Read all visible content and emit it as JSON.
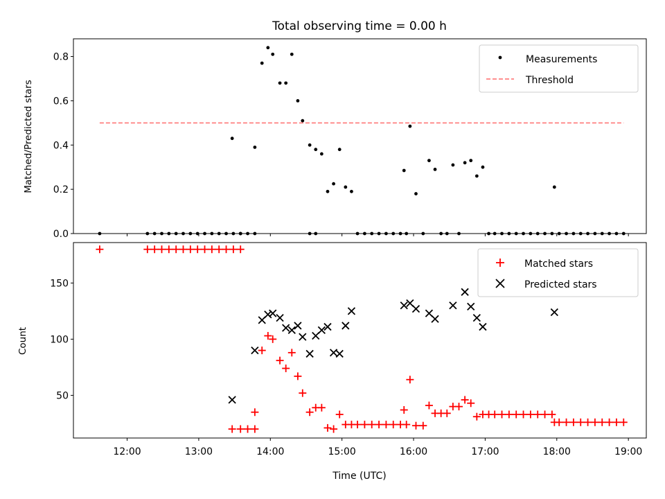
{
  "figure": {
    "title": "Total observing time = 0.00 h",
    "xlabel": "Time (UTC)"
  },
  "chart_data": [
    {
      "type": "scatter",
      "ylabel": "Matched/Predicted stars",
      "xlim": [
        "11:15",
        "19:15"
      ],
      "ylim": [
        0,
        0.88
      ],
      "yticks": [
        0.0,
        0.2,
        0.4,
        0.6,
        0.8
      ],
      "ytick_labels": [
        "0.0",
        "0.2",
        "0.4",
        "0.6",
        "0.8"
      ],
      "grid": false,
      "legend_position": "top-right",
      "series": [
        {
          "name": "Measurements",
          "marker": "dot",
          "color": "#000000",
          "points": [
            [
              "11:37",
              0
            ],
            [
              "12:17",
              0
            ],
            [
              "12:23",
              0
            ],
            [
              "12:29",
              0
            ],
            [
              "12:35",
              0
            ],
            [
              "12:41",
              0
            ],
            [
              "12:47",
              0
            ],
            [
              "12:53",
              0
            ],
            [
              "12:59",
              0
            ],
            [
              "13:05",
              0
            ],
            [
              "13:11",
              0
            ],
            [
              "13:17",
              0
            ],
            [
              "13:23",
              0
            ],
            [
              "13:29",
              0
            ],
            [
              "13:35",
              0
            ],
            [
              "13:28",
              0.43
            ],
            [
              "13:35",
              0
            ],
            [
              "13:41",
              0
            ],
            [
              "13:47",
              0
            ],
            [
              "13:47",
              0.39
            ],
            [
              "13:53",
              0.77
            ],
            [
              "13:58",
              0.84
            ],
            [
              "14:02",
              0.81
            ],
            [
              "14:08",
              0.68
            ],
            [
              "14:13",
              0.68
            ],
            [
              "14:18",
              0.81
            ],
            [
              "14:23",
              0.6
            ],
            [
              "14:27",
              0.51
            ],
            [
              "14:33",
              0
            ],
            [
              "14:38",
              0
            ],
            [
              "14:33",
              0.4
            ],
            [
              "14:38",
              0.38
            ],
            [
              "14:43",
              0.36
            ],
            [
              "14:48",
              0.19
            ],
            [
              "14:53",
              0.225
            ],
            [
              "14:58",
              0.38
            ],
            [
              "15:03",
              0.21
            ],
            [
              "15:08",
              0.19
            ],
            [
              "15:13",
              0
            ],
            [
              "15:19",
              0
            ],
            [
              "15:25",
              0
            ],
            [
              "15:31",
              0
            ],
            [
              "15:37",
              0
            ],
            [
              "15:43",
              0
            ],
            [
              "15:49",
              0
            ],
            [
              "15:54",
              0
            ],
            [
              "15:52",
              0.285
            ],
            [
              "15:57",
              0.485
            ],
            [
              "16:02",
              0.18
            ],
            [
              "16:08",
              0
            ],
            [
              "16:13",
              0.33
            ],
            [
              "16:18",
              0.29
            ],
            [
              "16:23",
              0
            ],
            [
              "16:28",
              0
            ],
            [
              "16:33",
              0.31
            ],
            [
              "16:38",
              0
            ],
            [
              "16:43",
              0.32
            ],
            [
              "16:48",
              0.33
            ],
            [
              "16:53",
              0.26
            ],
            [
              "16:58",
              0.3
            ],
            [
              "17:03",
              0
            ],
            [
              "17:08",
              0
            ],
            [
              "17:14",
              0
            ],
            [
              "17:20",
              0
            ],
            [
              "17:26",
              0
            ],
            [
              "17:32",
              0
            ],
            [
              "17:38",
              0
            ],
            [
              "17:44",
              0
            ],
            [
              "17:50",
              0
            ],
            [
              "17:56",
              0
            ],
            [
              "17:58",
              0.21
            ],
            [
              "18:02",
              0
            ],
            [
              "18:08",
              0
            ],
            [
              "18:14",
              0
            ],
            [
              "18:20",
              0
            ],
            [
              "18:26",
              0
            ],
            [
              "18:32",
              0
            ],
            [
              "18:38",
              0
            ],
            [
              "18:44",
              0
            ],
            [
              "18:50",
              0
            ],
            [
              "18:56",
              0
            ]
          ]
        },
        {
          "name": "Threshold",
          "type": "line",
          "style": "dashed",
          "color": "#ff7f7f",
          "points": [
            [
              "11:37",
              0.5
            ],
            [
              "18:56",
              0.5
            ]
          ]
        }
      ]
    },
    {
      "type": "scatter",
      "ylabel": "Count",
      "xlim": [
        "11:15",
        "19:15"
      ],
      "ylim": [
        12,
        186
      ],
      "yticks": [
        50,
        100,
        150
      ],
      "ytick_labels": [
        "50",
        "100",
        "150"
      ],
      "xticks": [
        "12:00",
        "13:00",
        "14:00",
        "15:00",
        "16:00",
        "17:00",
        "18:00",
        "19:00"
      ],
      "xtick_labels": [
        "12:00",
        "13:00",
        "14:00",
        "15:00",
        "16:00",
        "17:00",
        "18:00",
        "19:00"
      ],
      "grid": false,
      "legend_position": "top-right",
      "series": [
        {
          "name": "Matched stars",
          "marker": "plus",
          "color": "#ff0000",
          "points": [
            [
              "11:37",
              180
            ],
            [
              "12:17",
              180
            ],
            [
              "12:23",
              180
            ],
            [
              "12:29",
              180
            ],
            [
              "12:35",
              180
            ],
            [
              "12:41",
              180
            ],
            [
              "12:47",
              180
            ],
            [
              "12:53",
              180
            ],
            [
              "12:59",
              180
            ],
            [
              "13:05",
              180
            ],
            [
              "13:11",
              180
            ],
            [
              "13:17",
              180
            ],
            [
              "13:23",
              180
            ],
            [
              "13:29",
              180
            ],
            [
              "13:35",
              180
            ],
            [
              "13:28",
              20
            ],
            [
              "13:35",
              20
            ],
            [
              "13:41",
              20
            ],
            [
              "13:47",
              20
            ],
            [
              "13:47",
              35
            ],
            [
              "13:53",
              90
            ],
            [
              "13:58",
              103
            ],
            [
              "14:02",
              100
            ],
            [
              "14:08",
              81
            ],
            [
              "14:13",
              74
            ],
            [
              "14:18",
              88
            ],
            [
              "14:23",
              67
            ],
            [
              "14:27",
              52
            ],
            [
              "14:33",
              35
            ],
            [
              "14:38",
              39
            ],
            [
              "14:43",
              39
            ],
            [
              "14:48",
              21
            ],
            [
              "14:53",
              20
            ],
            [
              "14:58",
              33
            ],
            [
              "15:03",
              24
            ],
            [
              "15:08",
              24
            ],
            [
              "15:13",
              24
            ],
            [
              "15:19",
              24
            ],
            [
              "15:25",
              24
            ],
            [
              "15:31",
              24
            ],
            [
              "15:37",
              24
            ],
            [
              "15:43",
              24
            ],
            [
              "15:49",
              24
            ],
            [
              "15:54",
              24
            ],
            [
              "15:52",
              37
            ],
            [
              "15:57",
              64
            ],
            [
              "16:02",
              23
            ],
            [
              "16:08",
              23
            ],
            [
              "16:13",
              41
            ],
            [
              "16:18",
              34
            ],
            [
              "16:23",
              34
            ],
            [
              "16:28",
              34
            ],
            [
              "16:33",
              40
            ],
            [
              "16:38",
              40
            ],
            [
              "16:43",
              46
            ],
            [
              "16:48",
              43
            ],
            [
              "16:53",
              31
            ],
            [
              "16:58",
              33
            ],
            [
              "17:03",
              33
            ],
            [
              "17:08",
              33
            ],
            [
              "17:14",
              33
            ],
            [
              "17:20",
              33
            ],
            [
              "17:26",
              33
            ],
            [
              "17:32",
              33
            ],
            [
              "17:38",
              33
            ],
            [
              "17:44",
              33
            ],
            [
              "17:50",
              33
            ],
            [
              "17:56",
              33
            ],
            [
              "17:58",
              26
            ],
            [
              "18:02",
              26
            ],
            [
              "18:08",
              26
            ],
            [
              "18:14",
              26
            ],
            [
              "18:20",
              26
            ],
            [
              "18:26",
              26
            ],
            [
              "18:32",
              26
            ],
            [
              "18:38",
              26
            ],
            [
              "18:44",
              26
            ],
            [
              "18:50",
              26
            ],
            [
              "18:56",
              26
            ]
          ]
        },
        {
          "name": "Predicted stars",
          "marker": "x",
          "color": "#000000",
          "points": [
            [
              "13:28",
              46
            ],
            [
              "13:47",
              90
            ],
            [
              "13:53",
              117
            ],
            [
              "13:58",
              122
            ],
            [
              "14:02",
              123
            ],
            [
              "14:08",
              119
            ],
            [
              "14:13",
              110
            ],
            [
              "14:18",
              108
            ],
            [
              "14:23",
              112
            ],
            [
              "14:27",
              102
            ],
            [
              "14:33",
              87
            ],
            [
              "14:38",
              103
            ],
            [
              "14:43",
              108
            ],
            [
              "14:48",
              111
            ],
            [
              "14:53",
              88
            ],
            [
              "14:58",
              87
            ],
            [
              "15:03",
              112
            ],
            [
              "15:08",
              125
            ],
            [
              "15:52",
              130
            ],
            [
              "15:57",
              132
            ],
            [
              "16:02",
              127
            ],
            [
              "16:13",
              123
            ],
            [
              "16:18",
              118
            ],
            [
              "16:33",
              130
            ],
            [
              "16:43",
              142
            ],
            [
              "16:48",
              129
            ],
            [
              "16:53",
              119
            ],
            [
              "16:58",
              111
            ],
            [
              "17:58",
              124
            ]
          ]
        }
      ]
    }
  ]
}
